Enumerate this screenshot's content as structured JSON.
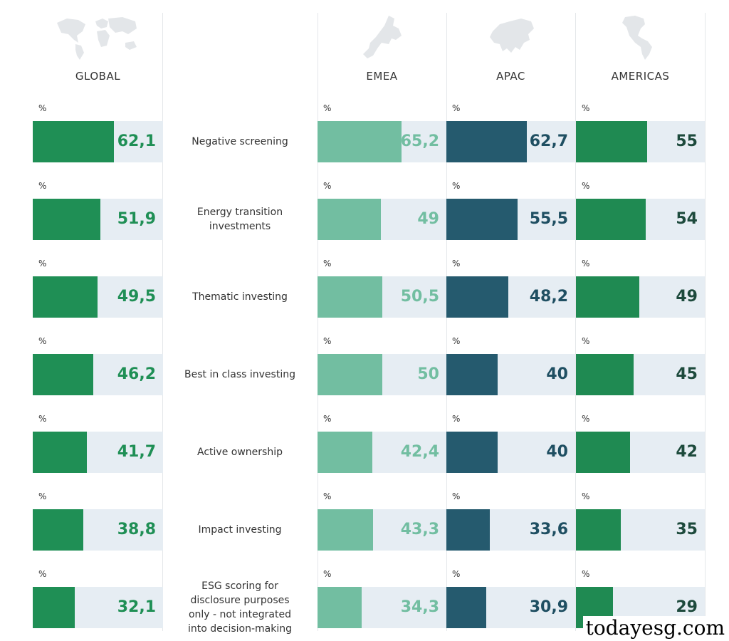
{
  "chart_data": {
    "type": "bar",
    "unit": "%",
    "categories": [
      "Negative screening",
      "Energy transition\ninvestments",
      "Thematic investing",
      "Best in class investing",
      "Active ownership",
      "Impact investing",
      "ESG scoring for\ndisclosure purposes\nonly - not integrated\ninto decision-making"
    ],
    "xlim": [
      0,
      100
    ],
    "series": [
      {
        "name": "GLOBAL",
        "color": "#1f8f55",
        "text_color": "#1f8f55",
        "values": [
          62.1,
          51.9,
          49.5,
          46.2,
          41.7,
          38.8,
          32.1
        ],
        "labels": [
          "62,1",
          "51,9",
          "49,5",
          "46,2",
          "41,7",
          "38,8",
          "32,1"
        ]
      },
      {
        "name": "EMEA",
        "color": "#72bea1",
        "text_color": "#72bea1",
        "values": [
          65.2,
          49,
          50.5,
          50,
          42.4,
          43.3,
          34.3
        ],
        "labels": [
          "65,2",
          "49",
          "50,5",
          "50",
          "42,4",
          "43,3",
          "34,3"
        ]
      },
      {
        "name": "APAC",
        "color": "#255a6e",
        "text_color": "#1f4f62",
        "values": [
          62.7,
          55.5,
          48.2,
          40,
          40,
          33.6,
          30.9
        ],
        "labels": [
          "62,7",
          "55,5",
          "48,2",
          "40",
          "40",
          "33,6",
          "30,9"
        ]
      },
      {
        "name": "AMERICAS",
        "color": "#1f8a52",
        "text_color": "#1d4a3c",
        "values": [
          55,
          54,
          49,
          45,
          42,
          35,
          29
        ],
        "labels": [
          "55",
          "54",
          "49",
          "45",
          "42",
          "35",
          "29"
        ]
      }
    ]
  },
  "icons": [
    "world-map-icon",
    "europe-map-icon",
    "asia-map-icon",
    "americas-map-icon"
  ],
  "watermark": "todayesg.com"
}
